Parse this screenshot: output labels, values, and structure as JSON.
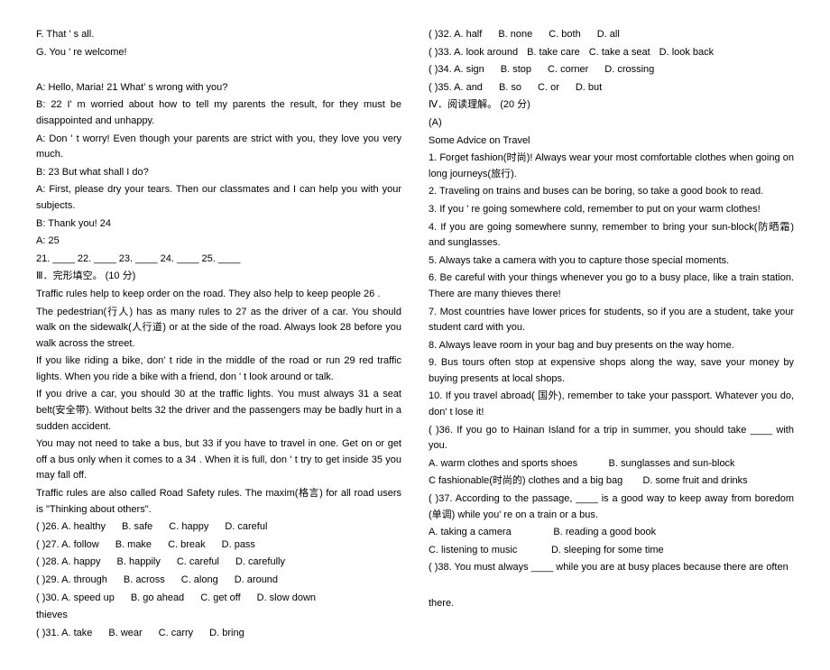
{
  "left": {
    "f": "F. That ' s all.",
    "g": "G. You ' re welcome!",
    "d1": "A: Hello, Maria!    21    What' s wrong with you?",
    "d2": "B:    22    I' m worried about how to tell my parents the result, for they must be disappointed and unhappy.",
    "d3": "A: Don ' t worry! Even though your parents are strict with you, they love you very much.",
    "d4": "B:    23    But what shall I do?",
    "d5": "A: First, please dry your tears. Then our classmates and I can help you with your subjects.",
    "d6": "B: Thank you!    24   ",
    "d7": "A:    25   ",
    "nums": "21. ____     22. ____     23. ____     24. ____     25. ____",
    "sec3": "Ⅲ．完形填空。 (10 分)",
    "p1": "Traffic rules help to keep order on the road. They also help to keep people  26   .",
    "p2": "The pedestrian(行人) has as many rules to    27    as the driver of a car. You should walk on the sidewalk(人行道) or at the side of the road. Always look    28    before you walk across the street.",
    "p3": "If you like riding a bike, don' t ride in the middle of the road or run    29    red traffic lights. When you ride a bike with a friend, don             ' t look around or talk.",
    "p4": "If you drive a car, you should    30    at the traffic lights. You must always    31    a seat belt(安全带). Without belts    32    the driver and the passengers may be badly hurt in a sudden accident.",
    "p5": "You may not need to take a bus, but   33    if you have to travel in one. Get on or get off a bus only when it comes to a    34   . When it is full, don             ' t try to get inside   35   you may fall off.",
    "p6": "Traffic rules are also called Road Safety rules. The maxim(格言) for all road users is \"Thinking about others\".",
    "o26a": "(    )26. A. healthy",
    "o26b": "B. safe",
    "o26c": "C. happy",
    "o26d": "D. careful",
    "o27a": "(    )27. A. follow",
    "o27b": "B. make",
    "o27c": "C. break",
    "o27d": "D. pass",
    "o28a": "(    )28. A. happy",
    "o28b": "B. happily",
    "o28c": "C. careful",
    "o28d": "D. carefully",
    "o29a": "(    )29. A. through",
    "o29b": "B. across",
    "o29c": "C. along",
    "o29d": "D. around",
    "o30a": "(    )30. A. speed up",
    "o30b": "B. go ahead",
    "o30c": "C. get off",
    "o30d": "D. slow down",
    "thieves": "thieves",
    "o31a": "(    )31. A. take",
    "o31b": "B. wear",
    "o31c": "C. carry",
    "o31d": "D. bring"
  },
  "right": {
    "o32a": "(    )32. A. half",
    "o32b": "B. none",
    "o32c": "C. both",
    "o32d": "D. all",
    "o33a": "(    )33. A. look around",
    "o33b": "B. take care",
    "o33c": "C. take a seat",
    "o33d": "D. look back",
    "o34a": "(    )34. A. sign",
    "o34b": "B. stop",
    "o34c": "C. corner",
    "o34d": "D. crossing",
    "o35a": "(    )35. A. and",
    "o35b": "B. so",
    "o35c": "C. or",
    "o35d": "D. but",
    "sec4": "Ⅳ．阅读理解。 (20 分)",
    "a": "(A)",
    "t": "Some Advice on Travel",
    "r1": "1. Forget fashion(时尚)! Always wear your most comfortable clothes when going on long journeys(旅行).",
    "r2": "2. Traveling on trains and buses can be boring, so take a good book to read.",
    "r3": "3. If you     ' re going somewhere cold, remember to put on your warm clothes!",
    "r4": "4. If you are going somewhere sunny, remember to bring your sun-block(防晒霜) and sunglasses.",
    "r5": "5. Always take a camera with you to capture those special moments.",
    "r6": "6. Be careful with your things whenever you go to a busy place, like a train station. There are many thieves there!",
    "r7": "7. Most countries have lower prices for students, so if you are a student, take your student card with you.",
    "r8": "8. Always leave room in your bag and buy presents on the way home.",
    "r9": "9. Bus tours often stop at expensive shops along the way, save your money by buying presents at local shops.",
    "r10": "10. If you travel abroad( 国外), remember to take your passport. Whatever you do, don' t lose it!",
    "q36": "(    )36. If you go to Hainan Island for a trip in summer, you should take ____ with you.",
    "q36a": "A. warm clothes and sports shoes",
    "q36b": "B. sunglasses and sun-block",
    "q36c": "C fashionable(时尚的) clothes and a big bag",
    "q36d": "D. some fruit and drinks",
    "q37": "(    )37. According to the passage, ____ is a good way to keep away from boredom (单调) while you' re on a train or a bus.",
    "q37a": "  A. taking a camera",
    "q37b": "B. reading a good book",
    "q37c": "  C. listening to music",
    "q37d": "D. sleeping for some time",
    "q38": "(    )38. You must always ____ while you are at busy places because there are often",
    "there": "there."
  }
}
